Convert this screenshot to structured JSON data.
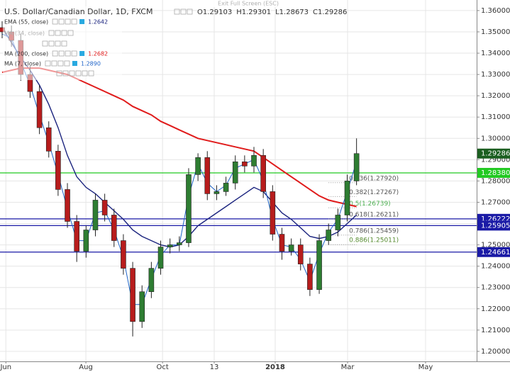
{
  "chart_data": {
    "type": "candlestick",
    "title": "U.S. Dollar/Canadian Dollar, 1D, FXCM",
    "ohlc_text": [
      "O1.29103",
      "H1.29301",
      "L1.28673",
      "C1.29286"
    ],
    "exit_text": "Exit Full Screen (ESC)",
    "up_color": "#2e7d32",
    "down_color": "#b71c1c",
    "xlim": [
      0,
      254.4
    ],
    "ylim": [
      1.1953,
      1.3633
    ],
    "xticks": [
      {
        "value": 2,
        "label": "Jun"
      },
      {
        "value": 44.9,
        "label": "Aug"
      },
      {
        "value": 86,
        "label": "Oct"
      },
      {
        "value": 113.7,
        "label": "13"
      },
      {
        "value": 146.4,
        "label": "2018"
      },
      {
        "value": 185.2,
        "label": "Mar"
      },
      {
        "value": 227,
        "label": "May"
      }
    ],
    "yticks": [
      {
        "value": 1.2,
        "label": "1.20000"
      },
      {
        "value": 1.21,
        "label": "1.21000"
      },
      {
        "value": 1.22,
        "label": "1.22000"
      },
      {
        "value": 1.23,
        "label": "1.23000"
      },
      {
        "value": 1.24,
        "label": "1.24000"
      },
      {
        "value": 1.25,
        "label": "1.25000"
      },
      {
        "value": 1.26,
        "label": "1.26000"
      },
      {
        "value": 1.27,
        "label": "1.27000"
      },
      {
        "value": 1.28,
        "label": "1.28000"
      },
      {
        "value": 1.29,
        "label": "1.29000"
      },
      {
        "value": 1.3,
        "label": "1.30000"
      },
      {
        "value": 1.31,
        "label": "1.31000"
      },
      {
        "value": 1.32,
        "label": "1.32000"
      },
      {
        "value": 1.33,
        "label": "1.33000"
      },
      {
        "value": 1.34,
        "label": "1.34000"
      },
      {
        "value": 1.35,
        "label": "1.35000"
      },
      {
        "value": 1.36,
        "label": "1.36000"
      }
    ],
    "grid": true,
    "x": [
      0,
      5,
      10,
      15,
      20,
      25,
      30,
      35,
      40,
      45,
      50,
      55,
      60,
      65,
      70,
      75,
      80,
      85,
      90,
      95,
      100,
      105,
      110,
      115,
      120,
      125,
      130,
      135,
      140,
      145,
      150,
      155,
      160,
      165,
      170,
      175,
      180,
      185,
      190
    ],
    "open": [
      1.352,
      1.35,
      1.346,
      1.33,
      1.322,
      1.305,
      1.294,
      1.276,
      1.261,
      1.247,
      1.257,
      1.271,
      1.264,
      1.252,
      1.239,
      1.214,
      1.228,
      1.239,
      1.249,
      1.25,
      1.251,
      1.283,
      1.291,
      1.274,
      1.275,
      1.279,
      1.289,
      1.287,
      1.292,
      1.275,
      1.255,
      1.247,
      1.25,
      1.241,
      1.229,
      1.252,
      1.257,
      1.264,
      1.28
    ],
    "high": [
      1.355,
      1.353,
      1.349,
      1.334,
      1.325,
      1.308,
      1.297,
      1.279,
      1.264,
      1.259,
      1.274,
      1.274,
      1.267,
      1.255,
      1.242,
      1.231,
      1.242,
      1.252,
      1.253,
      1.254,
      1.286,
      1.293,
      1.294,
      1.278,
      1.282,
      1.292,
      1.292,
      1.296,
      1.295,
      1.278,
      1.258,
      1.253,
      1.253,
      1.244,
      1.255,
      1.26,
      1.267,
      1.283,
      1.3
    ],
    "low": [
      1.347,
      1.343,
      1.327,
      1.319,
      1.302,
      1.291,
      1.273,
      1.258,
      1.242,
      1.244,
      1.254,
      1.261,
      1.249,
      1.236,
      1.207,
      1.211,
      1.225,
      1.236,
      1.246,
      1.247,
      1.249,
      1.28,
      1.271,
      1.271,
      1.273,
      1.276,
      1.284,
      1.284,
      1.272,
      1.252,
      1.243,
      1.245,
      1.238,
      1.226,
      1.227,
      1.25,
      1.254,
      1.261,
      1.278
    ],
    "close": [
      1.35,
      1.346,
      1.33,
      1.322,
      1.305,
      1.294,
      1.276,
      1.261,
      1.247,
      1.257,
      1.271,
      1.264,
      1.252,
      1.239,
      1.214,
      1.228,
      1.239,
      1.249,
      1.25,
      1.251,
      1.283,
      1.291,
      1.274,
      1.275,
      1.279,
      1.289,
      1.287,
      1.292,
      1.275,
      1.255,
      1.247,
      1.25,
      1.241,
      1.229,
      1.252,
      1.257,
      1.264,
      1.28,
      1.29286
    ],
    "series": [
      {
        "name": "EMA (55, close)",
        "color": "#1a237e",
        "last": "1.2642",
        "values": [
          1.352,
          1.345,
          1.338,
          1.332,
          1.325,
          1.316,
          1.305,
          1.292,
          1.282,
          1.277,
          1.274,
          1.27,
          1.266,
          1.262,
          1.257,
          1.254,
          1.252,
          1.25,
          1.249,
          1.25,
          1.254,
          1.259,
          1.262,
          1.265,
          1.268,
          1.271,
          1.274,
          1.277,
          1.275,
          1.27,
          1.265,
          1.262,
          1.258,
          1.254,
          1.253,
          1.254,
          1.256,
          1.26,
          1.264
        ]
      },
      {
        "name": "MA (200, close)",
        "color": "#e01b1b",
        "last": "1.2682",
        "values": [
          1.331,
          1.332,
          1.333,
          1.333,
          1.333,
          1.332,
          1.331,
          1.33,
          1.328,
          1.326,
          1.324,
          1.322,
          1.32,
          1.318,
          1.315,
          1.313,
          1.311,
          1.308,
          1.306,
          1.304,
          1.302,
          1.3,
          1.299,
          1.298,
          1.297,
          1.296,
          1.295,
          1.294,
          1.291,
          1.288,
          1.285,
          1.282,
          1.279,
          1.276,
          1.273,
          1.271,
          1.27,
          1.269,
          1.268
        ]
      },
      {
        "name": "MA (7, close)",
        "color": "#1e63c8",
        "last": "1.2890",
        "values": [
          1.349,
          1.347,
          1.336,
          1.325,
          1.311,
          1.298,
          1.283,
          1.267,
          1.252,
          1.252,
          1.265,
          1.266,
          1.257,
          1.244,
          1.222,
          1.222,
          1.234,
          1.245,
          1.25,
          1.25,
          1.273,
          1.288,
          1.279,
          1.275,
          1.278,
          1.286,
          1.288,
          1.29,
          1.28,
          1.262,
          1.25,
          1.249,
          1.243,
          1.233,
          1.246,
          1.256,
          1.262,
          1.275,
          1.289
        ]
      }
    ],
    "inactive_indicator": "MA (34, close)",
    "levels": [
      {
        "value": 1.2838,
        "label": "1.28380",
        "color": "#22c922"
      },
      {
        "value": 1.26222,
        "label": "1.26222",
        "color": "#1a1aa6"
      },
      {
        "value": 1.25905,
        "label": "1.25905",
        "color": "#1a1aa6"
      },
      {
        "value": 1.24661,
        "label": "1.24661",
        "color": "#1a1aa6"
      }
    ],
    "current": {
      "value": 1.29286,
      "label": "1.29286",
      "color": "#1b5e20"
    },
    "fib": [
      {
        "value": 1.2792,
        "label": "0.236(1.27920)",
        "color": "#555555"
      },
      {
        "value": 1.27267,
        "label": "0.382(1.27267)",
        "color": "#555555"
      },
      {
        "value": 1.26739,
        "label": "0.5(1.26739)",
        "color": "#4caf50"
      },
      {
        "value": 1.26211,
        "label": "0.618(1.26211)",
        "color": "#555555"
      },
      {
        "value": 1.25459,
        "label": "0.786(1.25459)",
        "color": "#555555"
      },
      {
        "value": 1.25011,
        "label": "0.886(1.25011)",
        "color": "#558b2f"
      }
    ]
  }
}
